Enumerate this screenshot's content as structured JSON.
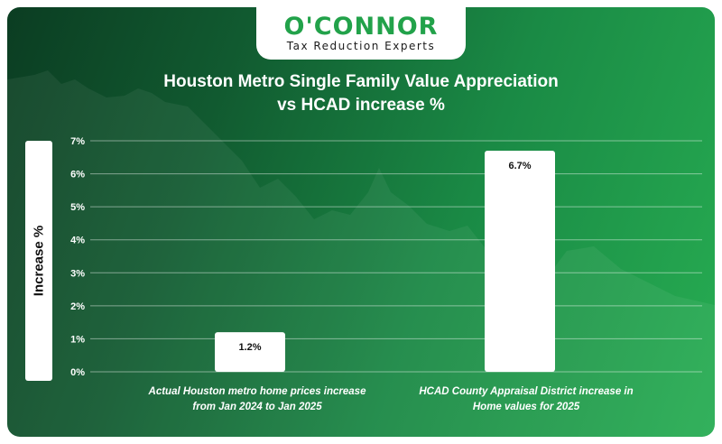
{
  "logo": {
    "name": "O'CONNOR",
    "tagline": "Tax Reduction Experts"
  },
  "colors": {
    "background_dark": "#0b3d22",
    "background_light": "#27ad52",
    "brand_green": "#22a24a",
    "bar": "#ffffff",
    "text": "#ffffff"
  },
  "chart_data": {
    "type": "bar",
    "title_line1": "Houston Metro Single Family Value Appreciation",
    "title_line2": "vs HCAD increase %",
    "ylabel": "Increase %",
    "xlabel": "",
    "ylim": [
      0,
      7
    ],
    "yticks": [
      "0%",
      "1%",
      "2%",
      "3%",
      "4%",
      "5%",
      "6%",
      "7%"
    ],
    "grid": true,
    "categories": [
      {
        "line1": "Actual Houston metro home prices increase",
        "line2": "from Jan 2024 to Jan 2025"
      },
      {
        "line1": "HCAD County Appraisal District increase in",
        "line2": "Home values for 2025"
      }
    ],
    "values": [
      1.2,
      6.7
    ],
    "data_labels": [
      "1.2%",
      "6.7%"
    ]
  }
}
